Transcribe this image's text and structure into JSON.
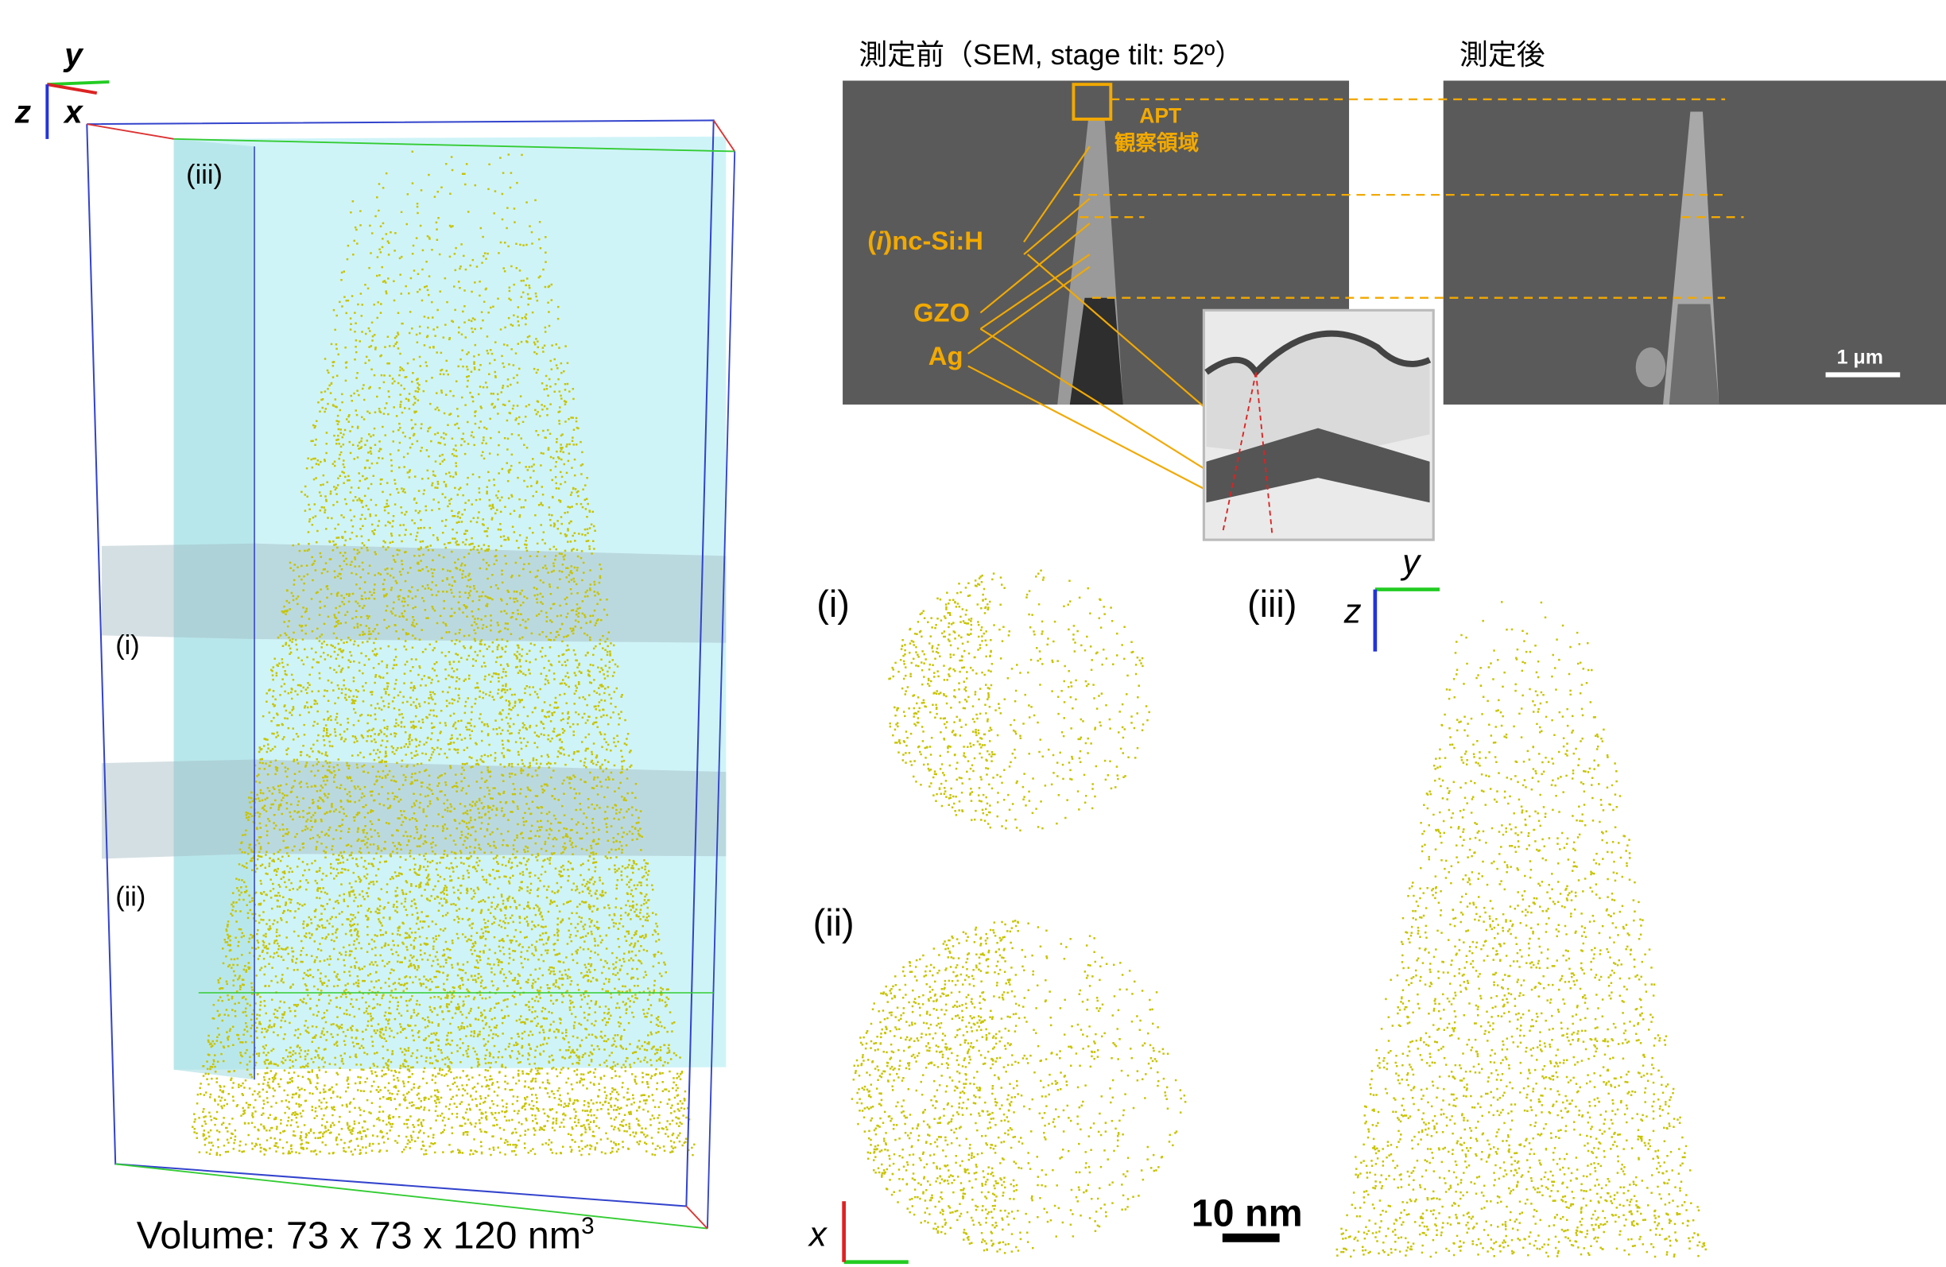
{
  "left_panel": {
    "axis_labels": {
      "y": "y",
      "z": "z",
      "x": "x"
    },
    "slice_labels": [
      "(iii)",
      "(i)",
      "(ii)"
    ],
    "volume": {
      "text": "Volume: 73 x 73 x 120 nm",
      "superscript": "3"
    }
  },
  "sem": {
    "before_title": "測定前（SEM, stage tilt: 52º）",
    "after_title": "測定後",
    "apt_label": [
      "APT",
      "観察領域"
    ],
    "layers": {
      "nc_si": {
        "open": "(",
        "italic": "i",
        "rest": ")nc-Si:H"
      },
      "gzo": "GZO",
      "ag": "Ag"
    },
    "scale_bar": "1 μm"
  },
  "slices": {
    "labels": [
      "(i)",
      "(ii)",
      "(iii)"
    ],
    "axes_side": {
      "y": "y",
      "z": "z"
    },
    "axes_bottom": {
      "x": "x"
    },
    "scale_bar": "10 nm"
  }
}
